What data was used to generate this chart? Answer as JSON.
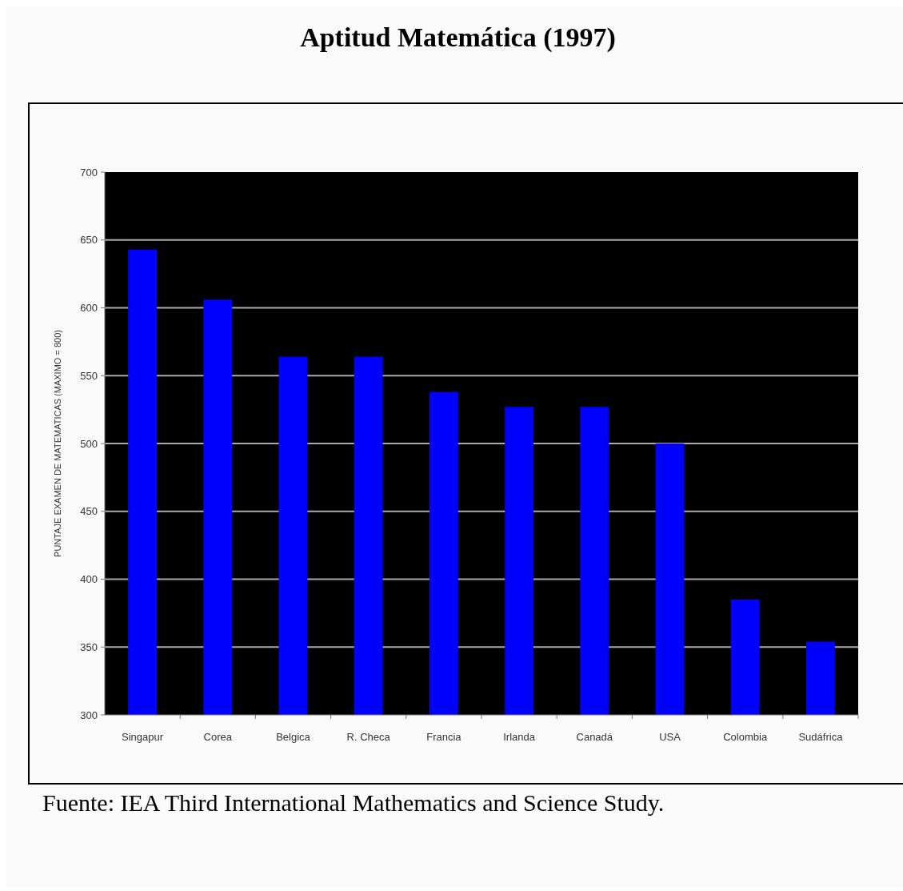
{
  "chart_data": {
    "type": "bar",
    "title": "Aptitud Matemática (1997)",
    "ylabel": "PUNTAJE EXAMEN DE MATEMATICAS  (MAXIMO = 800)",
    "categories": [
      "Singapur",
      "Corea",
      "Belgica",
      "R. Checa",
      "Francia",
      "Irlanda",
      "Canadá",
      "USA",
      "Colombia",
      "Sudáfrica"
    ],
    "values": [
      643,
      606,
      564,
      564,
      538,
      527,
      527,
      500,
      385,
      354
    ],
    "color": "#0000ff",
    "ylim": [
      300,
      700
    ],
    "yticks": [
      300,
      350,
      400,
      450,
      500,
      550,
      600,
      650,
      700
    ],
    "grid": "y",
    "annotations": [
      "Fuente: IEA Third International Mathematics and Science Study."
    ]
  }
}
